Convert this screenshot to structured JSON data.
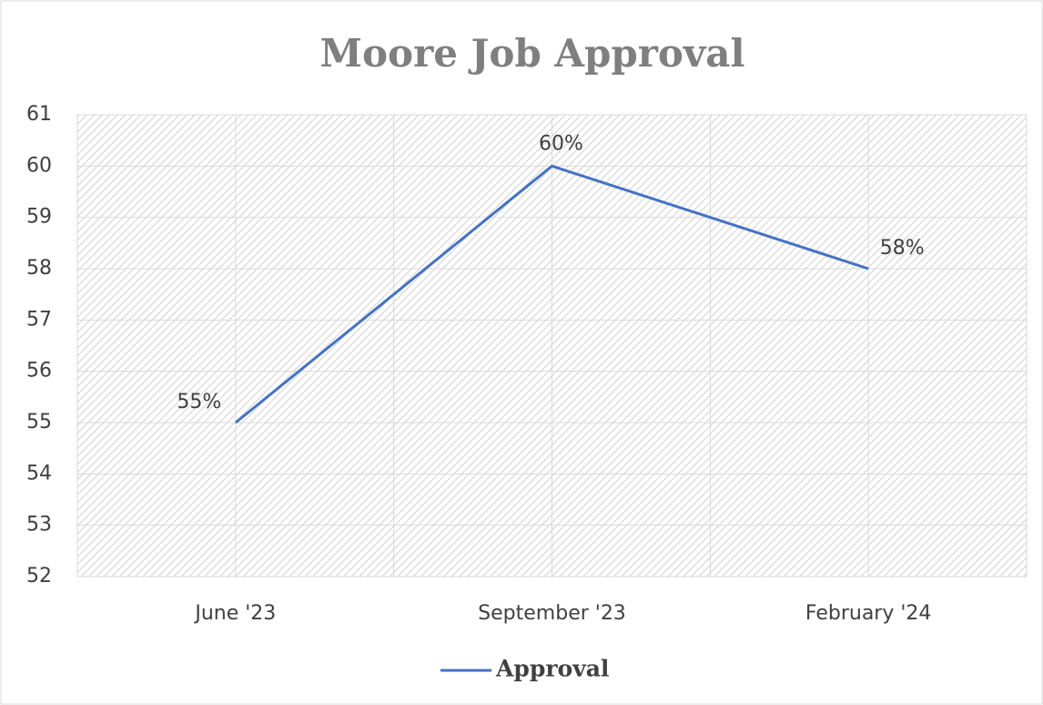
{
  "chart_data": {
    "type": "line",
    "title": "Moore Job Approval",
    "categories": [
      "June '23",
      "September '23",
      "February '24"
    ],
    "series": [
      {
        "name": "Approval",
        "color": "#4472c4",
        "values": [
          55,
          60,
          58
        ],
        "value_labels": [
          "55%",
          "60%",
          "58%"
        ]
      }
    ],
    "ylim": [
      52,
      61
    ],
    "yticks": [
      52,
      53,
      54,
      55,
      56,
      57,
      58,
      59,
      60,
      61
    ],
    "grid": true,
    "legend": "bottom"
  }
}
